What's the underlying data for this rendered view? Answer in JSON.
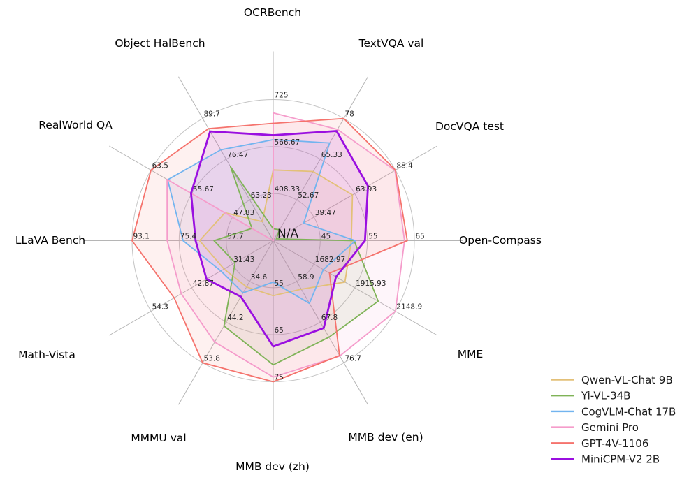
{
  "chart_data": {
    "type": "radar",
    "title": "",
    "na_label": "N/A",
    "grid": "on",
    "legend_position": "bottom-right",
    "axes": [
      {
        "label": "OCRBench",
        "min": 250,
        "ticks": [
          408.33,
          566.67,
          725.0
        ]
      },
      {
        "label": "TextVQA val",
        "min": 40,
        "ticks": [
          52.67,
          65.33,
          78.0
        ]
      },
      {
        "label": "DocVQA test",
        "min": 15,
        "ticks": [
          39.47,
          63.93,
          88.4
        ]
      },
      {
        "label": "Open-Compass",
        "min": 35,
        "ticks": [
          45.0,
          55.0,
          65.0
        ]
      },
      {
        "label": "MME",
        "min": 1450,
        "ticks": [
          1682.97,
          1915.93,
          2148.9
        ]
      },
      {
        "label": "MMB dev (en)",
        "min": 50,
        "ticks": [
          58.9,
          67.8,
          76.7
        ]
      },
      {
        "label": "MMB dev (zh)",
        "min": 45,
        "ticks": [
          55.0,
          65.0,
          75.0
        ]
      },
      {
        "label": "MMMU val",
        "min": 25,
        "ticks": [
          34.6,
          44.2,
          53.8
        ]
      },
      {
        "label": "Math-Vista",
        "min": 20,
        "ticks": [
          31.43,
          42.87,
          54.3
        ]
      },
      {
        "label": "LLaVA Bench",
        "min": 40,
        "ticks": [
          57.7,
          75.4,
          93.1
        ]
      },
      {
        "label": "RealWorld QA",
        "min": 40,
        "ticks": [
          47.83,
          55.67,
          63.5
        ]
      },
      {
        "label": "Object HalBench",
        "min": 50,
        "ticks": [
          63.23,
          76.47,
          89.7
        ]
      }
    ],
    "series": [
      {
        "name": "Qwen-VL-Chat 9B",
        "color": "#e3c078",
        "values": [
          488,
          61.5,
          62.6,
          51.6,
          1860.0,
          60.6,
          56.7,
          35.9,
          33.8,
          67.7,
          49.3,
          56.2
        ]
      },
      {
        "name": "Yi-VL-34B",
        "color": "#7fb357",
        "values": [
          290,
          43.4,
          16.9,
          52.2,
          2050.2,
          71.1,
          71.4,
          45.1,
          30.7,
          62.3,
          44.1,
          74.0
        ]
      },
      {
        "name": "CogVLM-Chat 17B",
        "color": "#72b4ef",
        "values": [
          590,
          70.4,
          33.3,
          52.5,
          1736.6,
          63.7,
          53.8,
          37.3,
          34.7,
          73.9,
          60.3,
          79.5
        ]
      },
      {
        "name": "Gemini Pro",
        "color": "#f59ccb",
        "values": [
          680,
          74.6,
          88.1,
          62.9,
          2148.9,
          75.2,
          74.0,
          48.9,
          45.8,
          79.9,
          60.4,
          null
        ]
      },
      {
        "name": "GPT-4V-1106",
        "color": "#f5736d",
        "values": [
          645,
          78.0,
          88.4,
          63.5,
          1771.5,
          75.1,
          75.0,
          53.8,
          47.8,
          93.1,
          63.5,
          86.4
        ]
      },
      {
        "name": "MiniCPM-V2 2B",
        "color": "#9a0fe0",
        "values": [
          605,
          74.1,
          71.9,
          54.5,
          1808.6,
          69.1,
          67.5,
          38.2,
          38.7,
          69.2,
          55.8,
          85.5
        ]
      }
    ]
  }
}
